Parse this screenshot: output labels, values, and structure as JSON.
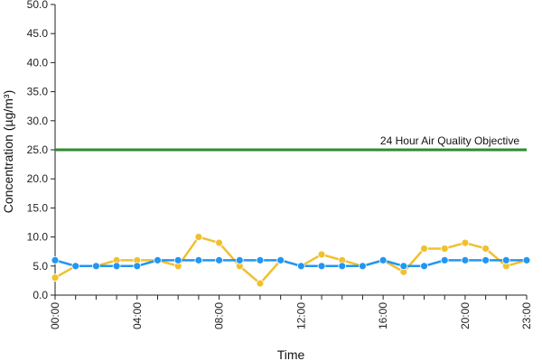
{
  "chart_data": {
    "type": "line",
    "xlabel": "Time",
    "ylabel": "Concentration (µg/m³)",
    "ylim": [
      0,
      50
    ],
    "yticks": [
      "0.0",
      "5.0",
      "10.0",
      "15.0",
      "20.0",
      "25.0",
      "30.0",
      "35.0",
      "40.0",
      "45.0",
      "50.0"
    ],
    "x": [
      "00:00",
      "01:00",
      "02:00",
      "03:00",
      "04:00",
      "05:00",
      "06:00",
      "07:00",
      "08:00",
      "09:00",
      "10:00",
      "11:00",
      "12:00",
      "13:00",
      "14:00",
      "15:00",
      "16:00",
      "17:00",
      "18:00",
      "19:00",
      "20:00",
      "21:00",
      "22:00",
      "23:00"
    ],
    "xtick_labels": [
      "00:00",
      "04:00",
      "08:00",
      "12:00",
      "16:00",
      "20:00",
      "23:00"
    ],
    "grid": false,
    "series": [
      {
        "color": "#f0c030",
        "values": [
          3,
          5,
          5,
          6,
          6,
          6,
          5,
          10,
          9,
          5,
          2,
          6,
          5,
          7,
          6,
          5,
          6,
          4,
          8,
          8,
          9,
          8,
          5,
          6
        ]
      },
      {
        "color": "#2196f3",
        "values": [
          6,
          5,
          5,
          5,
          5,
          6,
          6,
          6,
          6,
          6,
          6,
          6,
          5,
          5,
          5,
          5,
          6,
          5,
          5,
          6,
          6,
          6,
          6,
          6
        ]
      }
    ],
    "threshold": {
      "value": 25,
      "label": "24 Hour Air Quality Objective",
      "color": "#2e8b2e"
    }
  }
}
